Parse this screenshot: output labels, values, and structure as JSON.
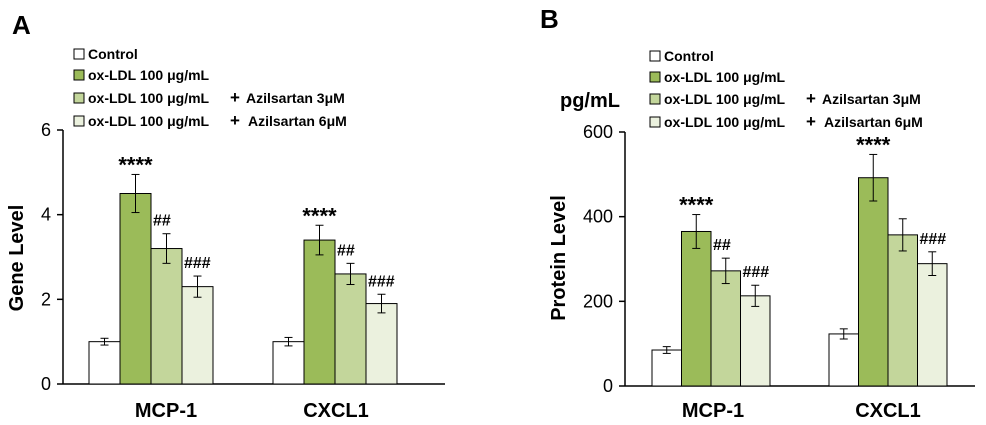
{
  "chart_data": [
    {
      "panel": "A",
      "type": "bar",
      "ylabel": "Gene Level",
      "ylim": [
        0,
        6
      ],
      "yticks": [
        0,
        2,
        4,
        6
      ],
      "categories": [
        "MCP-1",
        "CXCL1"
      ],
      "legend": [
        {
          "label": "Control"
        },
        {
          "label": "ox-LDL 100 μg/mL"
        },
        {
          "label": "ox-LDL 100 μg/mL",
          "plus": "+",
          "drug": "Azilsartan 3μM"
        },
        {
          "label": "ox-LDL 100 μg/mL",
          "plus": "+",
          "drug": "Azilsartan 6μM"
        }
      ],
      "series": [
        {
          "name": "Control",
          "color": "#ffffff",
          "values": [
            1.0,
            1.0
          ],
          "errors": [
            0.08,
            0.1
          ]
        },
        {
          "name": "ox-LDL 100 μg/mL",
          "color": "#9bbb59",
          "values": [
            4.5,
            3.4
          ],
          "errors": [
            0.45,
            0.35
          ]
        },
        {
          "name": "ox-LDL 100 μg/mL + Azilsartan 3μM",
          "color": "#c3d69b",
          "values": [
            3.2,
            2.6
          ],
          "errors": [
            0.35,
            0.25
          ]
        },
        {
          "name": "ox-LDL 100 μg/mL + Azilsartan 6μM",
          "color": "#ebf1de",
          "values": [
            2.3,
            1.9
          ],
          "errors": [
            0.25,
            0.22
          ]
        }
      ],
      "annotations": [
        {
          "series": 1,
          "category": 0,
          "text": "****"
        },
        {
          "series": 2,
          "category": 0,
          "text": "##"
        },
        {
          "series": 3,
          "category": 0,
          "text": "###"
        },
        {
          "series": 1,
          "category": 1,
          "text": "****"
        },
        {
          "series": 2,
          "category": 1,
          "text": "##"
        },
        {
          "series": 3,
          "category": 1,
          "text": "###"
        }
      ]
    },
    {
      "panel": "B",
      "type": "bar",
      "ylabel": "Protein Level",
      "unit": "pg/mL",
      "ylim": [
        0,
        600
      ],
      "yticks": [
        0,
        200,
        400,
        600
      ],
      "categories": [
        "MCP-1",
        "CXCL1"
      ],
      "legend": [
        {
          "label": "Control"
        },
        {
          "label": "ox-LDL 100 μg/mL"
        },
        {
          "label": "ox-LDL 100 μg/mL",
          "plus": "+",
          "drug": "Azilsartan 3μM"
        },
        {
          "label": "ox-LDL 100 μg/mL",
          "plus": "+",
          "drug": "Azilsartan 6μM"
        }
      ],
      "series": [
        {
          "name": "Control",
          "color": "#ffffff",
          "values": [
            85,
            123
          ],
          "errors": [
            8,
            12
          ]
        },
        {
          "name": "ox-LDL 100 μg/mL",
          "color": "#9bbb59",
          "values": [
            365,
            492
          ],
          "errors": [
            40,
            55
          ]
        },
        {
          "name": "ox-LDL 100 μg/mL + Azilsartan 3μM",
          "color": "#c3d69b",
          "values": [
            272,
            357
          ],
          "errors": [
            30,
            38
          ]
        },
        {
          "name": "ox-LDL 100 μg/mL + Azilsartan 6μM",
          "color": "#ebf1de",
          "values": [
            213,
            289
          ],
          "errors": [
            25,
            28
          ]
        }
      ],
      "annotations": [
        {
          "series": 1,
          "category": 0,
          "text": "****"
        },
        {
          "series": 2,
          "category": 0,
          "text": "##"
        },
        {
          "series": 3,
          "category": 0,
          "text": "###"
        },
        {
          "series": 1,
          "category": 1,
          "text": "****"
        },
        {
          "series": 3,
          "category": 1,
          "text": "###"
        }
      ]
    }
  ]
}
